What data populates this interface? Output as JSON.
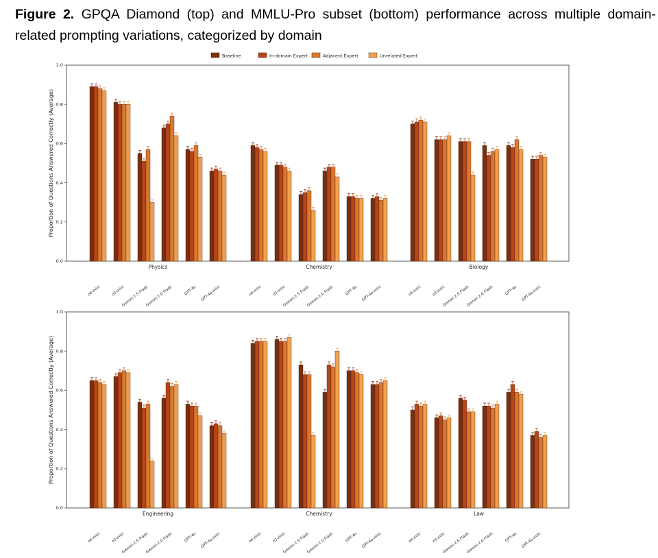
{
  "caption": {
    "label": "Figure 2.",
    "text": "GPQA Diamond (top) and MMLU-Pro subset (bottom) performance across multiple domain-related prompting variations, categorized by domain"
  },
  "legend": [
    "Baseline",
    "In-domain Expert",
    "Adjacent Expert",
    "Unrelated Expert"
  ],
  "colors": [
    "#7b2f10",
    "#b5461c",
    "#dc7730",
    "#f0a050"
  ],
  "chart_data": [
    {
      "type": "bar",
      "ylabel": "Proportion of Questions Answered Correctly (Average)",
      "ylim": [
        0,
        1.0
      ],
      "yticks": [
        "0.0",
        "0.2",
        "0.4",
        "0.6",
        "0.8",
        "1.0"
      ],
      "legend_position": "top-center",
      "models": [
        "o4-mini",
        "o3-mini",
        "Gemini 2.5 Flash",
        "Gemini 2.0 Flash",
        "GPT-4o",
        "GPT-4o-mini"
      ],
      "groups": [
        {
          "domain": "Physics",
          "values": [
            [
              0.89,
              0.89,
              0.88,
              0.87
            ],
            [
              0.81,
              0.8,
              0.8,
              0.8
            ],
            [
              0.55,
              0.51,
              0.57,
              0.3
            ],
            [
              0.68,
              0.7,
              0.74,
              0.64
            ],
            [
              0.57,
              0.56,
              0.59,
              0.53
            ],
            [
              0.46,
              0.47,
              0.46,
              0.44
            ]
          ]
        },
        {
          "domain": "Chemistry",
          "values": [
            [
              0.59,
              0.58,
              0.57,
              0.56
            ],
            [
              0.49,
              0.49,
              0.48,
              0.46
            ],
            [
              0.34,
              0.35,
              0.36,
              0.26
            ],
            [
              0.46,
              0.48,
              0.48,
              0.43
            ],
            [
              0.33,
              0.33,
              0.32,
              0.32
            ],
            [
              0.32,
              0.33,
              0.31,
              0.32
            ]
          ]
        },
        {
          "domain": "Biology",
          "values": [
            [
              0.7,
              0.71,
              0.72,
              0.71
            ],
            [
              0.62,
              0.62,
              0.62,
              0.64
            ],
            [
              0.61,
              0.61,
              0.61,
              0.44
            ],
            [
              0.59,
              0.54,
              0.56,
              0.57
            ],
            [
              0.59,
              0.58,
              0.62,
              0.57
            ],
            [
              0.52,
              0.52,
              0.54,
              0.53
            ]
          ]
        }
      ]
    },
    {
      "type": "bar",
      "ylabel": "Proportion of Questions Answered Correctly (Average)",
      "ylim": [
        0,
        1.0
      ],
      "yticks": [
        "0.0",
        "0.2",
        "0.4",
        "0.6",
        "0.8",
        "1.0"
      ],
      "models": [
        "o4-mini",
        "o3-mini",
        "Gemini 2.5 Flash",
        "Gemini 2.0 Flash",
        "GPT-4o",
        "GPT-4o-mini"
      ],
      "groups": [
        {
          "domain": "Engineering",
          "values": [
            [
              0.65,
              0.65,
              0.64,
              0.63
            ],
            [
              0.67,
              0.69,
              0.7,
              0.69
            ],
            [
              0.54,
              0.51,
              0.53,
              0.24
            ],
            [
              0.56,
              0.64,
              0.62,
              0.63
            ],
            [
              0.53,
              0.52,
              0.52,
              0.47
            ],
            [
              0.42,
              0.43,
              0.42,
              0.38
            ]
          ]
        },
        {
          "domain": "Chemistry",
          "values": [
            [
              0.84,
              0.85,
              0.85,
              0.85
            ],
            [
              0.86,
              0.85,
              0.85,
              0.87
            ],
            [
              0.73,
              0.68,
              0.68,
              0.37
            ],
            [
              0.59,
              0.73,
              0.72,
              0.8
            ],
            [
              0.7,
              0.7,
              0.69,
              0.68
            ],
            [
              0.63,
              0.63,
              0.64,
              0.65
            ]
          ]
        },
        {
          "domain": "Law",
          "values": [
            [
              0.5,
              0.53,
              0.52,
              0.53
            ],
            [
              0.46,
              0.47,
              0.45,
              0.46
            ],
            [
              0.56,
              0.55,
              0.49,
              0.49
            ],
            [
              0.52,
              0.52,
              0.51,
              0.53
            ],
            [
              0.59,
              0.63,
              0.59,
              0.58
            ],
            [
              0.37,
              0.39,
              0.36,
              0.37
            ]
          ]
        }
      ]
    }
  ]
}
